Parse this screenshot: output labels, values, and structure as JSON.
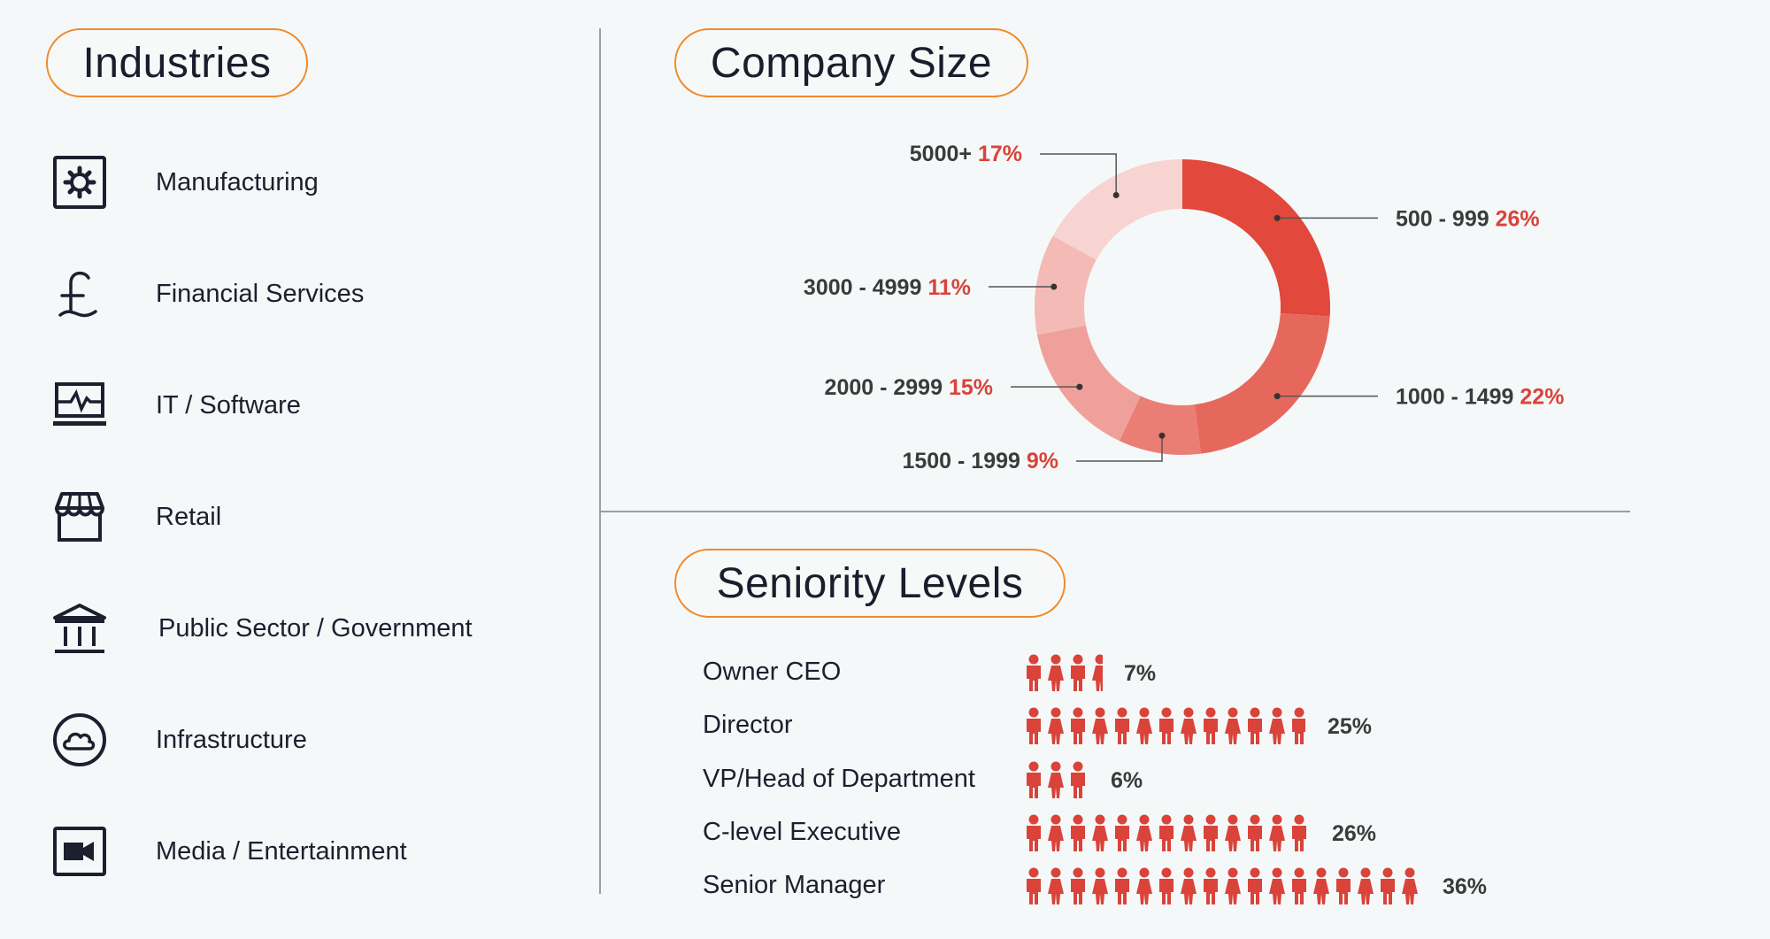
{
  "industries": {
    "title": "Industries",
    "items": [
      {
        "label": "Manufacturing",
        "icon": "gear-icon"
      },
      {
        "label": "Financial Services",
        "icon": "pound-icon"
      },
      {
        "label": "IT / Software",
        "icon": "laptop-pulse-icon"
      },
      {
        "label": "Retail",
        "icon": "storefront-icon"
      },
      {
        "label": "Public Sector / Government",
        "icon": "government-building-icon"
      },
      {
        "label": "Infrastructure",
        "icon": "cloud-icon"
      },
      {
        "label": "Media / Entertainment",
        "icon": "video-camera-icon"
      }
    ]
  },
  "company_size": {
    "title": "Company Size"
  },
  "seniority": {
    "title": "Seniority Levels"
  },
  "colors": {
    "accent_orange": "#ef8a2c",
    "red": "#d9433a",
    "icon_navy": "#1c1f2e"
  },
  "chart_data": [
    {
      "type": "pie",
      "subtype": "donut",
      "title": "Company Size",
      "slices": [
        {
          "label": "500 - 999",
          "value": 26,
          "display": "26%",
          "color": "#e2483b"
        },
        {
          "label": "1000 - 1499",
          "value": 22,
          "display": "22%",
          "color": "#e6685c"
        },
        {
          "label": "1500 - 1999",
          "value": 9,
          "display": "9%",
          "color": "#ea7d74"
        },
        {
          "label": "2000 - 2999",
          "value": 15,
          "display": "15%",
          "color": "#f0a09a"
        },
        {
          "label": "3000 - 4999",
          "value": 11,
          "display": "11%",
          "color": "#f4bab5"
        },
        {
          "label": "5000+",
          "value": 17,
          "display": "17%",
          "color": "#f7d4d1"
        }
      ]
    },
    {
      "type": "bar",
      "subtype": "pictogram",
      "title": "Seniority Levels",
      "categories": [
        "Owner CEO",
        "Director",
        "VP/Head of Department",
        "C-level Executive",
        "Senior Manager"
      ],
      "values": [
        7,
        25,
        6,
        26,
        36
      ],
      "display": [
        "7%",
        "25%",
        "6%",
        "26%",
        "36%"
      ],
      "icon_counts": [
        3.6,
        12.8,
        3,
        13,
        18
      ],
      "color": "#d9433a"
    }
  ]
}
